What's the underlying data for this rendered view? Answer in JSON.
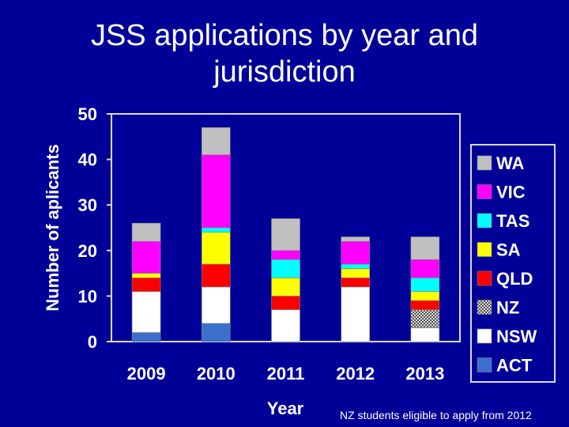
{
  "slide": {
    "title": "JSS applications by year and jurisdiction",
    "footnote": "NZ students eligible to apply from  2012"
  },
  "chart_data": {
    "type": "bar",
    "stacked": true,
    "title": "JSS applications by year and jurisdiction",
    "xlabel": "Year",
    "ylabel": "Number of aplicants",
    "ylim": [
      0,
      50
    ],
    "yticks": [
      0,
      10,
      20,
      30,
      40,
      50
    ],
    "grid": false,
    "legend_position": "right",
    "categories": [
      "2009",
      "2010",
      "2011",
      "2012",
      "2013"
    ],
    "series": [
      {
        "name": "ACT",
        "color": "#3a6fcc",
        "values": [
          2,
          4,
          0,
          0,
          0
        ]
      },
      {
        "name": "NSW",
        "color": "#ffffff",
        "values": [
          9,
          8,
          7,
          12,
          3
        ]
      },
      {
        "name": "NZ",
        "color": "#a6a6a6",
        "pattern": "dotted",
        "values": [
          0,
          0,
          0,
          0,
          4
        ]
      },
      {
        "name": "QLD",
        "color": "#ff0000",
        "values": [
          3,
          5,
          3,
          2,
          2
        ]
      },
      {
        "name": "SA",
        "color": "#ffff00",
        "values": [
          1,
          7,
          4,
          2,
          2
        ]
      },
      {
        "name": "TAS",
        "color": "#00ffff",
        "values": [
          0,
          1,
          4,
          1,
          3
        ]
      },
      {
        "name": "VIC",
        "color": "#ff00ff",
        "values": [
          7,
          16,
          2,
          5,
          4
        ]
      },
      {
        "name": "WA",
        "color": "#c0c0c0",
        "values": [
          4,
          6,
          7,
          1,
          5
        ]
      }
    ]
  }
}
